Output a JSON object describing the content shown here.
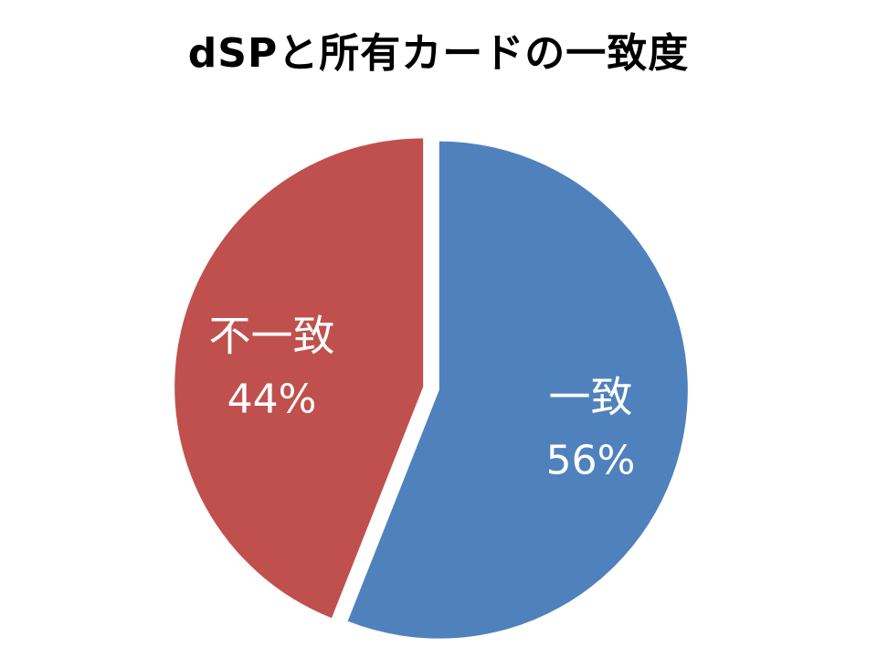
{
  "chart_data": {
    "type": "pie",
    "title": "dSPと所有カードの一致度",
    "categories": [
      "一致",
      "不一致"
    ],
    "values": [
      56,
      44
    ],
    "labels": [
      "56%",
      "44%"
    ],
    "colors": [
      "#4F81BD",
      "#C0504D"
    ],
    "legend": "none"
  }
}
